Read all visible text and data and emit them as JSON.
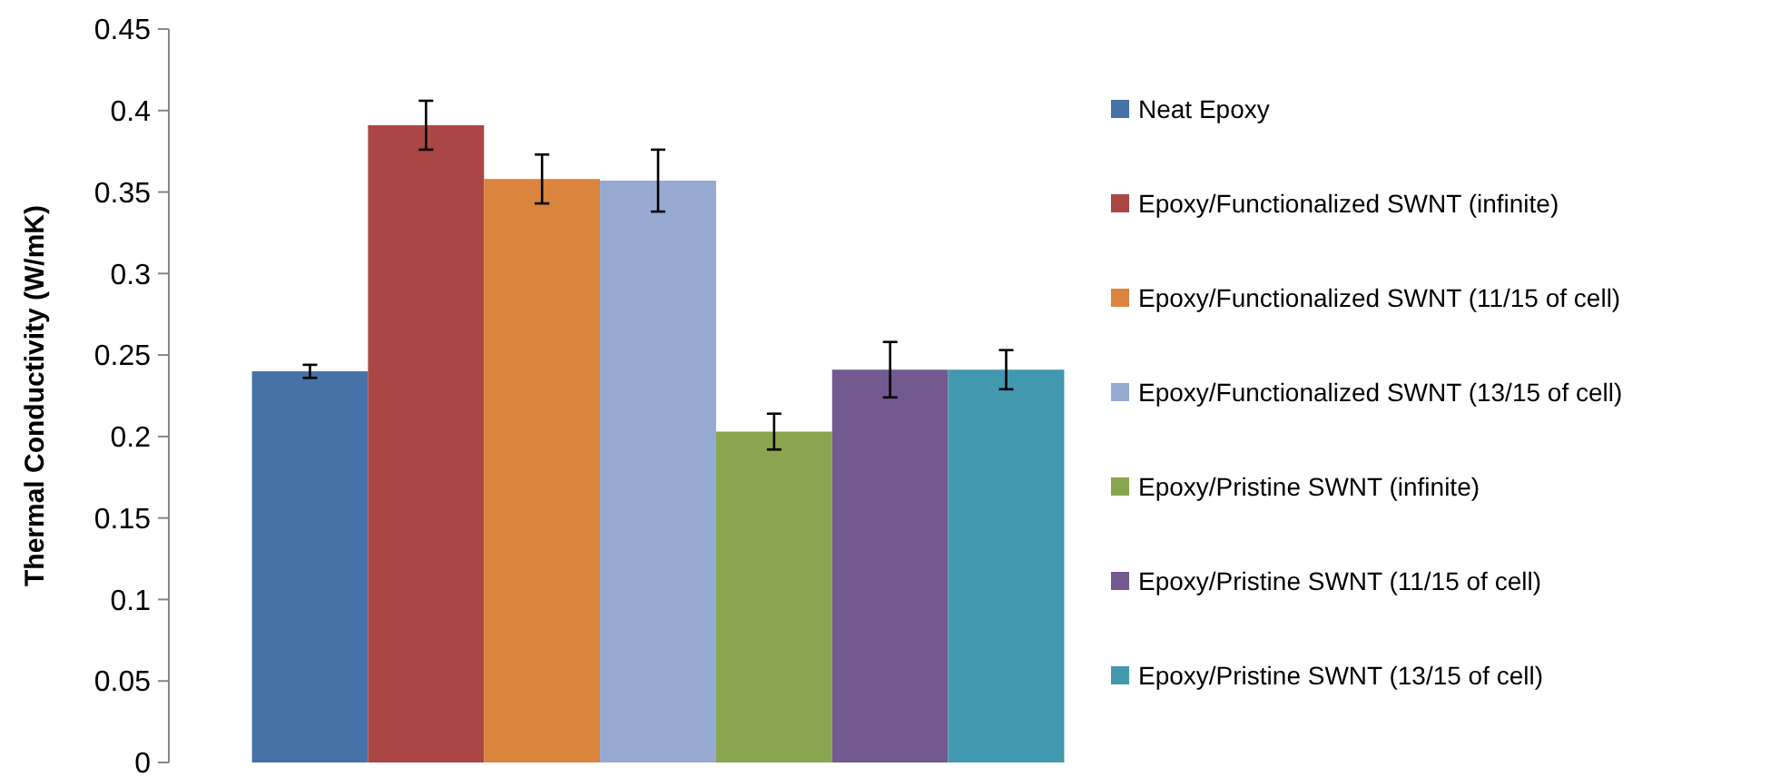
{
  "chart_data": {
    "type": "bar",
    "ylabel": "Thermal Conductivity (W/mK)",
    "categories": [
      null
    ],
    "ylim": [
      0,
      0.45
    ],
    "yticks": [
      0,
      0.05,
      0.1,
      0.15,
      0.2,
      0.25,
      0.3,
      0.35,
      0.4,
      0.45
    ],
    "grid": false,
    "legend": "right",
    "series": [
      {
        "name": "Neat Epoxy",
        "color": "#4672a8",
        "values": [
          0.24
        ],
        "errors": [
          0.004
        ]
      },
      {
        "name": "Epoxy/Functionalized SWNT (infinite)",
        "color": "#aa4644",
        "values": [
          0.391
        ],
        "errors": [
          0.015
        ]
      },
      {
        "name": "Epoxy/Functionalized SWNT (11/15 of cell)",
        "color": "#db843d",
        "values": [
          0.358
        ],
        "errors": [
          0.015
        ]
      },
      {
        "name": "Epoxy/Functionalized SWNT (13/15 of cell)",
        "color": "#95a9d1",
        "values": [
          0.357
        ],
        "errors": [
          0.019
        ]
      },
      {
        "name": "Epoxy/Pristine SWNT (infinite)",
        "color": "#89a54e",
        "values": [
          0.203
        ],
        "errors": [
          0.011
        ]
      },
      {
        "name": "Epoxy/Pristine SWNT (11/15 of cell)",
        "color": "#725990",
        "values": [
          0.241
        ],
        "errors": [
          0.017
        ]
      },
      {
        "name": "Epoxy/Pristine SWNT (13/15 of cell)",
        "color": "#4298af",
        "values": [
          0.241
        ],
        "errors": [
          0.012
        ]
      }
    ]
  }
}
